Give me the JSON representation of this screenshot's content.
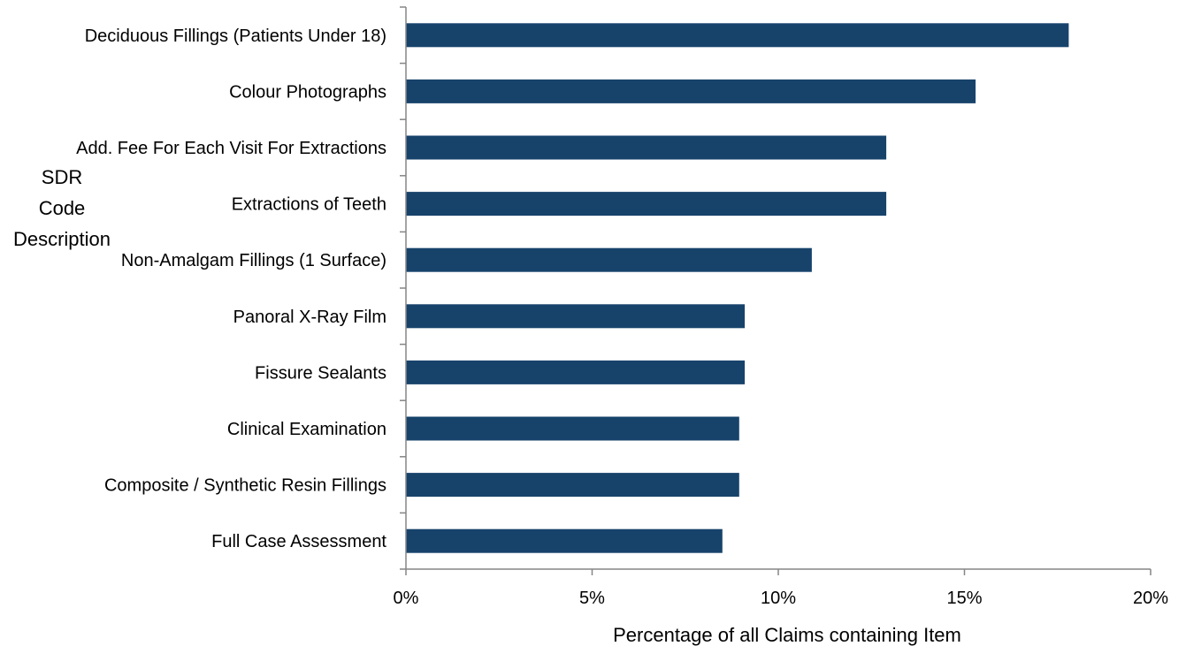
{
  "chart_data": {
    "type": "bar",
    "orientation": "horizontal",
    "categories": [
      "Deciduous Fillings (Patients Under 18)",
      "Colour Photographs",
      "Add. Fee For Each Visit For Extractions",
      "Extractions of Teeth",
      "Non-Amalgam Fillings (1 Surface)",
      "Panoral X-Ray Film",
      "Fissure Sealants",
      "Clinical Examination",
      "Composite / Synthetic Resin Fillings",
      "Full Case Assessment"
    ],
    "values": [
      17.8,
      15.3,
      12.9,
      12.9,
      10.9,
      9.1,
      9.1,
      8.95,
      8.95,
      8.5
    ],
    "xlim": [
      0,
      20
    ],
    "xticks": [
      0,
      5,
      10,
      15,
      20
    ],
    "xtick_labels": [
      "0%",
      "5%",
      "10%",
      "15%",
      "20%"
    ],
    "xlabel": "Percentage of all  Claims containing  Item",
    "ylabel_lines": [
      "SDR",
      "Code",
      "Description"
    ],
    "bar_color": "#17436B",
    "axis_color": "#868686",
    "grid": false,
    "legend": "none"
  }
}
